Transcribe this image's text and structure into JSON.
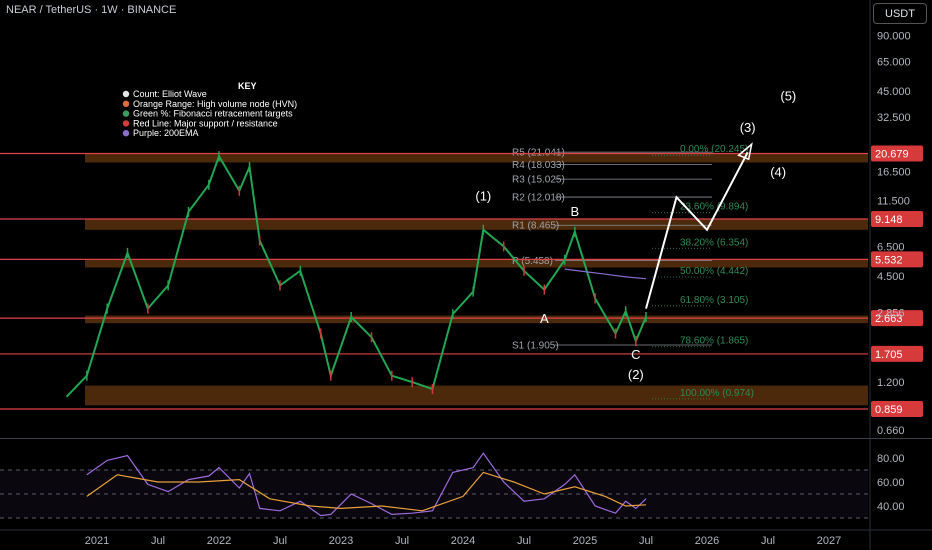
{
  "header": {
    "title": "NEAR / TetherUS · 1W · BINANCE",
    "currency_button": "USDT"
  },
  "key": {
    "title": "KEY",
    "items": [
      {
        "label": "Count: Elliot Wave",
        "color": "#e8e8e8"
      },
      {
        "label": "Orange Range: High volume node (HVN)",
        "color": "#e06c3c"
      },
      {
        "label": "Green %: Fibonacci retracement targets",
        "color": "#3c9c5c"
      },
      {
        "label": "Red Line: Major support / resistance",
        "color": "#d03c3c"
      },
      {
        "label": "Purple: 200EMA",
        "color": "#8a6ccc"
      }
    ]
  },
  "chart_data": {
    "type": "candlestick",
    "symbol": "NEAR / TetherUS",
    "timeframe": "1W",
    "exchange": "BINANCE",
    "y_scale": "log",
    "y_ticks": [
      90.0,
      65.0,
      45.0,
      32.5,
      16.5,
      11.5,
      6.5,
      4.5,
      2.856,
      1.2,
      0.66
    ],
    "y_tick_labels": [
      "90.000",
      "65.000",
      "45.000",
      "32.500",
      "16.500",
      "11.500",
      "6.500",
      "4.500",
      "2.856",
      "1.200",
      "0.660"
    ],
    "x_ticks": [
      "2021",
      "Jul",
      "2022",
      "Jul",
      "2023",
      "Jul",
      "2024",
      "Jul",
      "2025",
      "Jul",
      "2026",
      "Jul",
      "2027"
    ],
    "price_line": [
      [
        "2020-10",
        1.0
      ],
      [
        "2020-12",
        1.3
      ],
      [
        "2021-02",
        3.0
      ],
      [
        "2021-04",
        6.0
      ],
      [
        "2021-06",
        3.0
      ],
      [
        "2021-08",
        4.0
      ],
      [
        "2021-10",
        10.0
      ],
      [
        "2021-12",
        14.0
      ],
      [
        "2022-01",
        20.0
      ],
      [
        "2022-03",
        13.0
      ],
      [
        "2022-04",
        17.5
      ],
      [
        "2022-05",
        7.0
      ],
      [
        "2022-07",
        4.0
      ],
      [
        "2022-09",
        4.8
      ],
      [
        "2022-11",
        2.2
      ],
      [
        "2022-12",
        1.3
      ],
      [
        "2023-02",
        2.7
      ],
      [
        "2023-04",
        2.1
      ],
      [
        "2023-06",
        1.3
      ],
      [
        "2023-08",
        1.2
      ],
      [
        "2023-10",
        1.1
      ],
      [
        "2023-12",
        2.8
      ],
      [
        "2024-02",
        3.7
      ],
      [
        "2024-03",
        8.0
      ],
      [
        "2024-05",
        6.5
      ],
      [
        "2024-07",
        4.8
      ],
      [
        "2024-09",
        3.8
      ],
      [
        "2024-11",
        5.5
      ],
      [
        "2024-12",
        7.8
      ],
      [
        "2025-02",
        3.4
      ],
      [
        "2025-04",
        2.2
      ],
      [
        "2025-05",
        2.9
      ],
      [
        "2025-06",
        2.0
      ],
      [
        "2025-07",
        2.7
      ]
    ],
    "ema200": [
      [
        "2024-11",
        4.9
      ],
      [
        "2025-01",
        4.75
      ],
      [
        "2025-03",
        4.6
      ],
      [
        "2025-05",
        4.45
      ],
      [
        "2025-07",
        4.35
      ]
    ],
    "projection": [
      [
        "2025-07",
        3.0
      ],
      [
        "2025-10",
        12.0
      ],
      [
        "2026-01",
        8.0
      ],
      [
        "2026-05",
        21.0
      ]
    ],
    "support_resistance": [
      {
        "value": 20.679,
        "label": "20.679"
      },
      {
        "value": 9.148,
        "label": "9.148"
      },
      {
        "value": 5.532,
        "label": "5.532"
      },
      {
        "value": 2.663,
        "label": "2.663"
      },
      {
        "value": 1.705,
        "label": "1.705"
      },
      {
        "value": 0.859,
        "label": "0.859"
      }
    ],
    "hvn_zones": [
      [
        18.5,
        20.679
      ],
      [
        8.0,
        9.148
      ],
      [
        5.0,
        5.532
      ],
      [
        2.5,
        2.75
      ],
      [
        0.9,
        1.15
      ]
    ],
    "pivots": [
      {
        "label": "R5 (21.041)",
        "value": 21.041
      },
      {
        "label": "R4 (18.033)",
        "value": 18.033
      },
      {
        "label": "R3 (15.025)",
        "value": 15.025
      },
      {
        "label": "R2 (12.018)",
        "value": 12.018
      },
      {
        "label": "R1 (8.465)",
        "value": 8.465
      },
      {
        "label": "P (5.458)",
        "value": 5.458
      },
      {
        "label": "S1 (1.905)",
        "value": 1.905
      }
    ],
    "fib_levels": [
      {
        "label": "0.00% (20.245)",
        "value": 20.245
      },
      {
        "label": "23.60% (9.894)",
        "value": 9.894
      },
      {
        "label": "38.20% (6.354)",
        "value": 6.354
      },
      {
        "label": "50.00% (4.442)",
        "value": 4.442
      },
      {
        "label": "61.80% (3.105)",
        "value": 3.105
      },
      {
        "label": "78.60% (1.865)",
        "value": 1.865
      },
      {
        "label": "100.00% (0.974)",
        "value": 0.974
      }
    ],
    "wave_labels": [
      {
        "label": "(1)",
        "date": "2024-03",
        "value": 11.5
      },
      {
        "label": "A",
        "date": "2024-09",
        "value": 2.5
      },
      {
        "label": "B",
        "date": "2024-12",
        "value": 9.5
      },
      {
        "label": "C",
        "date": "2025-06",
        "value": 1.6
      },
      {
        "label": "(2)",
        "date": "2025-06",
        "value": 1.25
      },
      {
        "label": "(3)",
        "date": "2026-05",
        "value": 27.0
      },
      {
        "label": "(4)",
        "date": "2026-08",
        "value": 15.5
      },
      {
        "label": "(5)",
        "date": "2026-09",
        "value": 40.0
      }
    ],
    "rsi": {
      "y_ticks": [
        80.0,
        60.0,
        40.0
      ],
      "y_tick_labels": [
        "80.00",
        "60.00",
        "40.00"
      ],
      "bands": [
        70,
        50,
        30
      ],
      "line": [
        [
          "2020-12",
          66
        ],
        [
          "2021-02",
          78
        ],
        [
          "2021-04",
          82
        ],
        [
          "2021-06",
          58
        ],
        [
          "2021-08",
          52
        ],
        [
          "2021-10",
          62
        ],
        [
          "2021-12",
          65
        ],
        [
          "2022-01",
          72
        ],
        [
          "2022-03",
          55
        ],
        [
          "2022-04",
          67
        ],
        [
          "2022-05",
          38
        ],
        [
          "2022-07",
          36
        ],
        [
          "2022-09",
          44
        ],
        [
          "2022-11",
          32
        ],
        [
          "2022-12",
          33
        ],
        [
          "2023-02",
          50
        ],
        [
          "2023-04",
          42
        ],
        [
          "2023-06",
          33
        ],
        [
          "2023-08",
          34
        ],
        [
          "2023-10",
          36
        ],
        [
          "2023-12",
          68
        ],
        [
          "2024-02",
          72
        ],
        [
          "2024-03",
          84
        ],
        [
          "2024-05",
          60
        ],
        [
          "2024-07",
          44
        ],
        [
          "2024-09",
          46
        ],
        [
          "2024-11",
          58
        ],
        [
          "2024-12",
          66
        ],
        [
          "2025-02",
          40
        ],
        [
          "2025-04",
          34
        ],
        [
          "2025-05",
          44
        ],
        [
          "2025-06",
          38
        ],
        [
          "2025-07",
          46
        ]
      ],
      "ma": [
        [
          "2020-12",
          48
        ],
        [
          "2021-03",
          66
        ],
        [
          "2021-07",
          60
        ],
        [
          "2021-11",
          60
        ],
        [
          "2022-03",
          62
        ],
        [
          "2022-06",
          46
        ],
        [
          "2022-10",
          40
        ],
        [
          "2023-01",
          38
        ],
        [
          "2023-05",
          40
        ],
        [
          "2023-09",
          36
        ],
        [
          "2024-01",
          48
        ],
        [
          "2024-03",
          68
        ],
        [
          "2024-06",
          60
        ],
        [
          "2024-09",
          50
        ],
        [
          "2024-12",
          56
        ],
        [
          "2025-03",
          48
        ],
        [
          "2025-05",
          40
        ],
        [
          "2025-07",
          41
        ]
      ]
    },
    "current_price": 2.856
  }
}
